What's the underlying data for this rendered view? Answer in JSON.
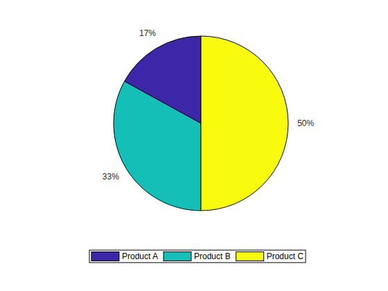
{
  "chart_data": {
    "type": "pie",
    "categories": [
      "Product A",
      "Product B",
      "Product C"
    ],
    "values": [
      17,
      33,
      50
    ],
    "value_labels": [
      "17%",
      "33%",
      "50%"
    ],
    "data_labels": true,
    "colors": [
      "#3e26a8",
      "#13bfb6",
      "#f9fb0e"
    ],
    "legend": "bottom"
  }
}
